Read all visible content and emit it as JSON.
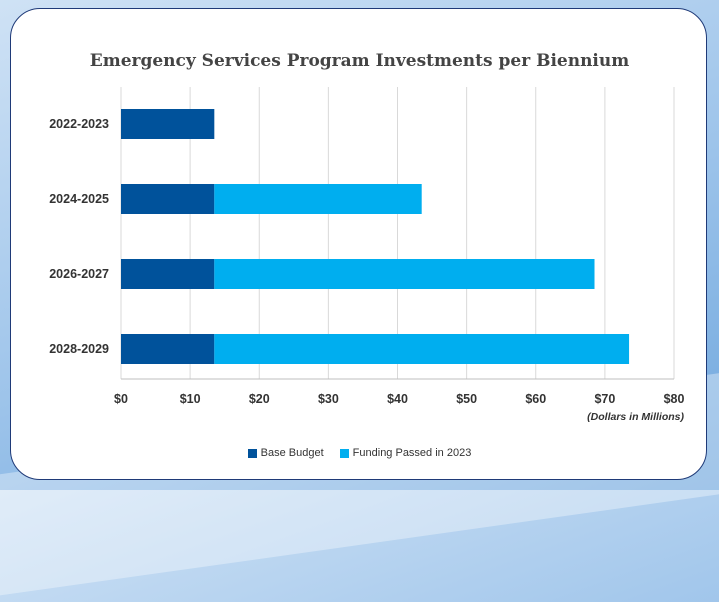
{
  "chart_data": {
    "type": "bar",
    "orientation": "horizontal",
    "stacked": true,
    "title": "Emergency Services Program Investments per Biennium",
    "categories": [
      "2022-2023",
      "2024-2025",
      "2026-2027",
      "2028-2029"
    ],
    "series": [
      {
        "name": "Base Budget",
        "color": "#00529b",
        "values": [
          13.5,
          13.5,
          13.5,
          13.5
        ]
      },
      {
        "name": "Funding Passed in 2023",
        "color": "#00aeef",
        "values": [
          0,
          30,
          55,
          60
        ]
      }
    ],
    "x_ticks": [
      "$0",
      "$10",
      "$20",
      "$30",
      "$40",
      "$50",
      "$60",
      "$70",
      "$80"
    ],
    "xlim": [
      0,
      80
    ],
    "x_unit_note": "(Dollars in Millions)",
    "grid": "vertical",
    "legend_position": "bottom"
  }
}
